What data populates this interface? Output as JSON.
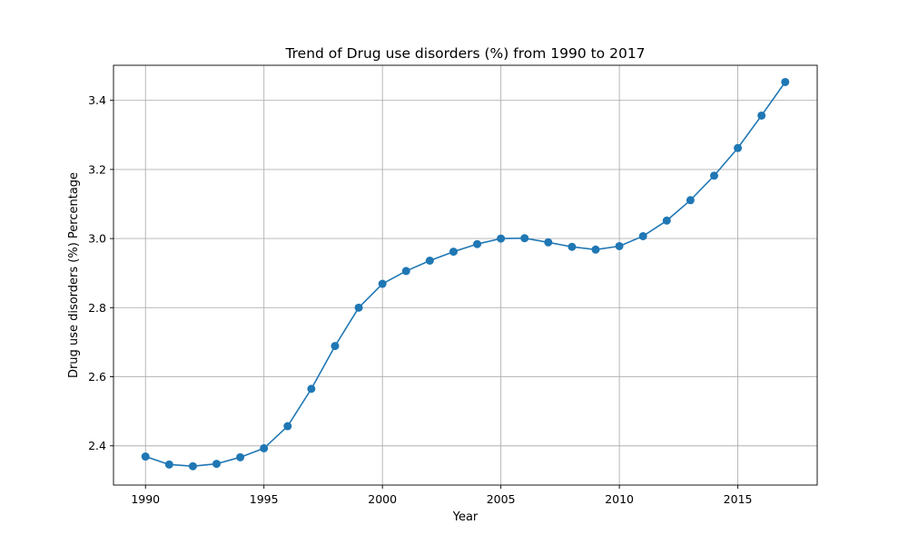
{
  "chart_data": {
    "type": "line",
    "title": "Trend of Drug use disorders (%) from 1990 to 2017",
    "xlabel": "Year",
    "ylabel": "Drug use disorders (%) Percentage",
    "xlim": [
      1988.65,
      2018.35
    ],
    "ylim": [
      2.2865,
      3.5015
    ],
    "xticks": [
      1990,
      1995,
      2000,
      2005,
      2010,
      2015
    ],
    "yticks": [
      2.4,
      2.6,
      2.8,
      3.0,
      3.2,
      3.4
    ],
    "ytick_labels": [
      "2.4",
      "2.6",
      "2.8",
      "3.0",
      "3.2",
      "3.4"
    ],
    "grid": true,
    "color": "#1f77b4",
    "marker": "circle",
    "x": [
      1990,
      1991,
      1992,
      1993,
      1994,
      1995,
      1996,
      1997,
      1998,
      1999,
      2000,
      2001,
      2002,
      2003,
      2004,
      2005,
      2006,
      2007,
      2008,
      2009,
      2010,
      2011,
      2012,
      2013,
      2014,
      2015,
      2016,
      2017
    ],
    "values": [
      2.369,
      2.346,
      2.341,
      2.348,
      2.367,
      2.393,
      2.457,
      2.565,
      2.689,
      2.8,
      2.869,
      2.906,
      2.936,
      2.962,
      2.984,
      3.0,
      3.001,
      2.989,
      2.976,
      2.968,
      2.978,
      3.007,
      3.052,
      3.111,
      3.182,
      3.262,
      3.356,
      3.453
    ]
  }
}
